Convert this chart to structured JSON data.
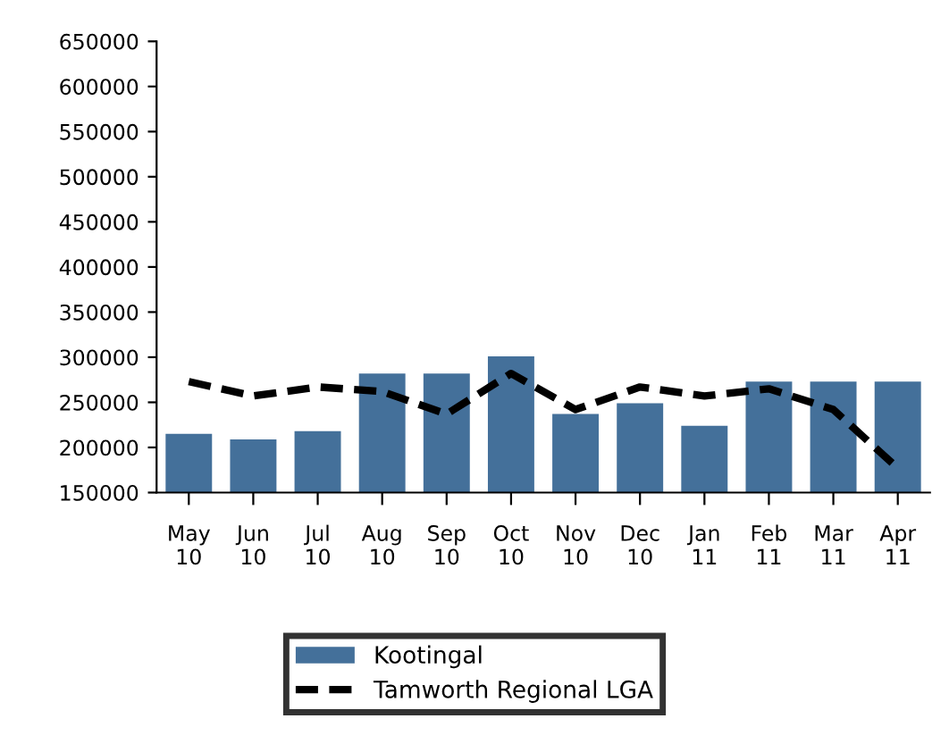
{
  "chart_data": {
    "type": "bar",
    "categories": [
      "May\n10",
      "Jun\n10",
      "Jul\n10",
      "Aug\n10",
      "Sep\n10",
      "Oct\n10",
      "Nov\n10",
      "Dec\n10",
      "Jan\n11",
      "Feb\n11",
      "Mar\n11",
      "Apr\n11"
    ],
    "series": [
      {
        "name": "Kootingal",
        "color": "#44709a",
        "values": [
          215000,
          209000,
          218000,
          282000,
          282000,
          301000,
          237000,
          249000,
          224000,
          273000,
          273000,
          273000
        ]
      },
      {
        "name": "Tamworth Regional LGA",
        "type": "line",
        "color": "#000000",
        "line_style": "dashed",
        "values": [
          273000,
          257000,
          267000,
          262000,
          237000,
          282000,
          242000,
          267000,
          257000,
          265000,
          242000,
          177000
        ]
      }
    ],
    "ylim": [
      150000,
      650000
    ],
    "yticks": [
      150000,
      200000,
      250000,
      300000,
      350000,
      400000,
      450000,
      500000,
      550000,
      600000,
      650000
    ],
    "grid": false,
    "legend": "bottom"
  }
}
